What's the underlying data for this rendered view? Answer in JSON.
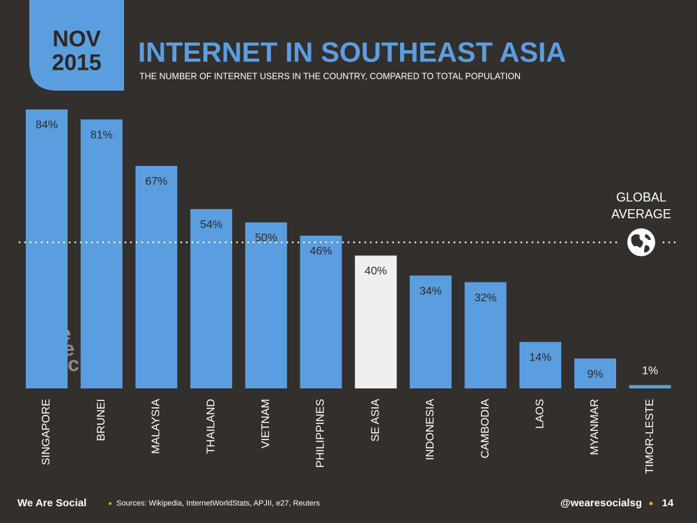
{
  "badge": {
    "month": "NOV",
    "year": "2015"
  },
  "chart_data": {
    "type": "bar",
    "title": "INTERNET IN SOUTHEAST ASIA",
    "subtitle": "THE NUMBER OF INTERNET USERS IN THE COUNTRY, COMPARED TO TOTAL POPULATION",
    "categories": [
      "SINGAPORE",
      "BRUNEI",
      "MALAYSIA",
      "THAILAND",
      "VIETNAM",
      "PHILIPPINES",
      "SE ASIA",
      "INDONESIA",
      "CAMBODIA",
      "LAOS",
      "MYANMAR",
      "TIMOR-LESTE"
    ],
    "values": [
      84,
      81,
      67,
      54,
      50,
      46,
      40,
      34,
      32,
      14,
      9,
      1
    ],
    "value_labels": [
      "84%",
      "81%",
      "67%",
      "54%",
      "50%",
      "46%",
      "40%",
      "34%",
      "32%",
      "14%",
      "9%",
      "1%"
    ],
    "colors": [
      "#5b9ee0",
      "#5b9ee0",
      "#5b9ee0",
      "#5b9ee0",
      "#5b9ee0",
      "#5b9ee0",
      "#f1efed",
      "#5b9ee0",
      "#5b9ee0",
      "#5b9ee0",
      "#5b9ee0",
      "#5b9ee0"
    ],
    "global_average": {
      "label_lines": [
        "GLOBAL",
        "AVERAGE"
      ],
      "value": 44
    }
  },
  "watermark": [
    "we",
    "are",
    "social"
  ],
  "footer": {
    "brand": "We Are Social",
    "sources": "Sources: Wikipedia, InternetWorldStats, APJII, e27, Reuters",
    "handle": "@wearesocialsg",
    "page": "14"
  }
}
